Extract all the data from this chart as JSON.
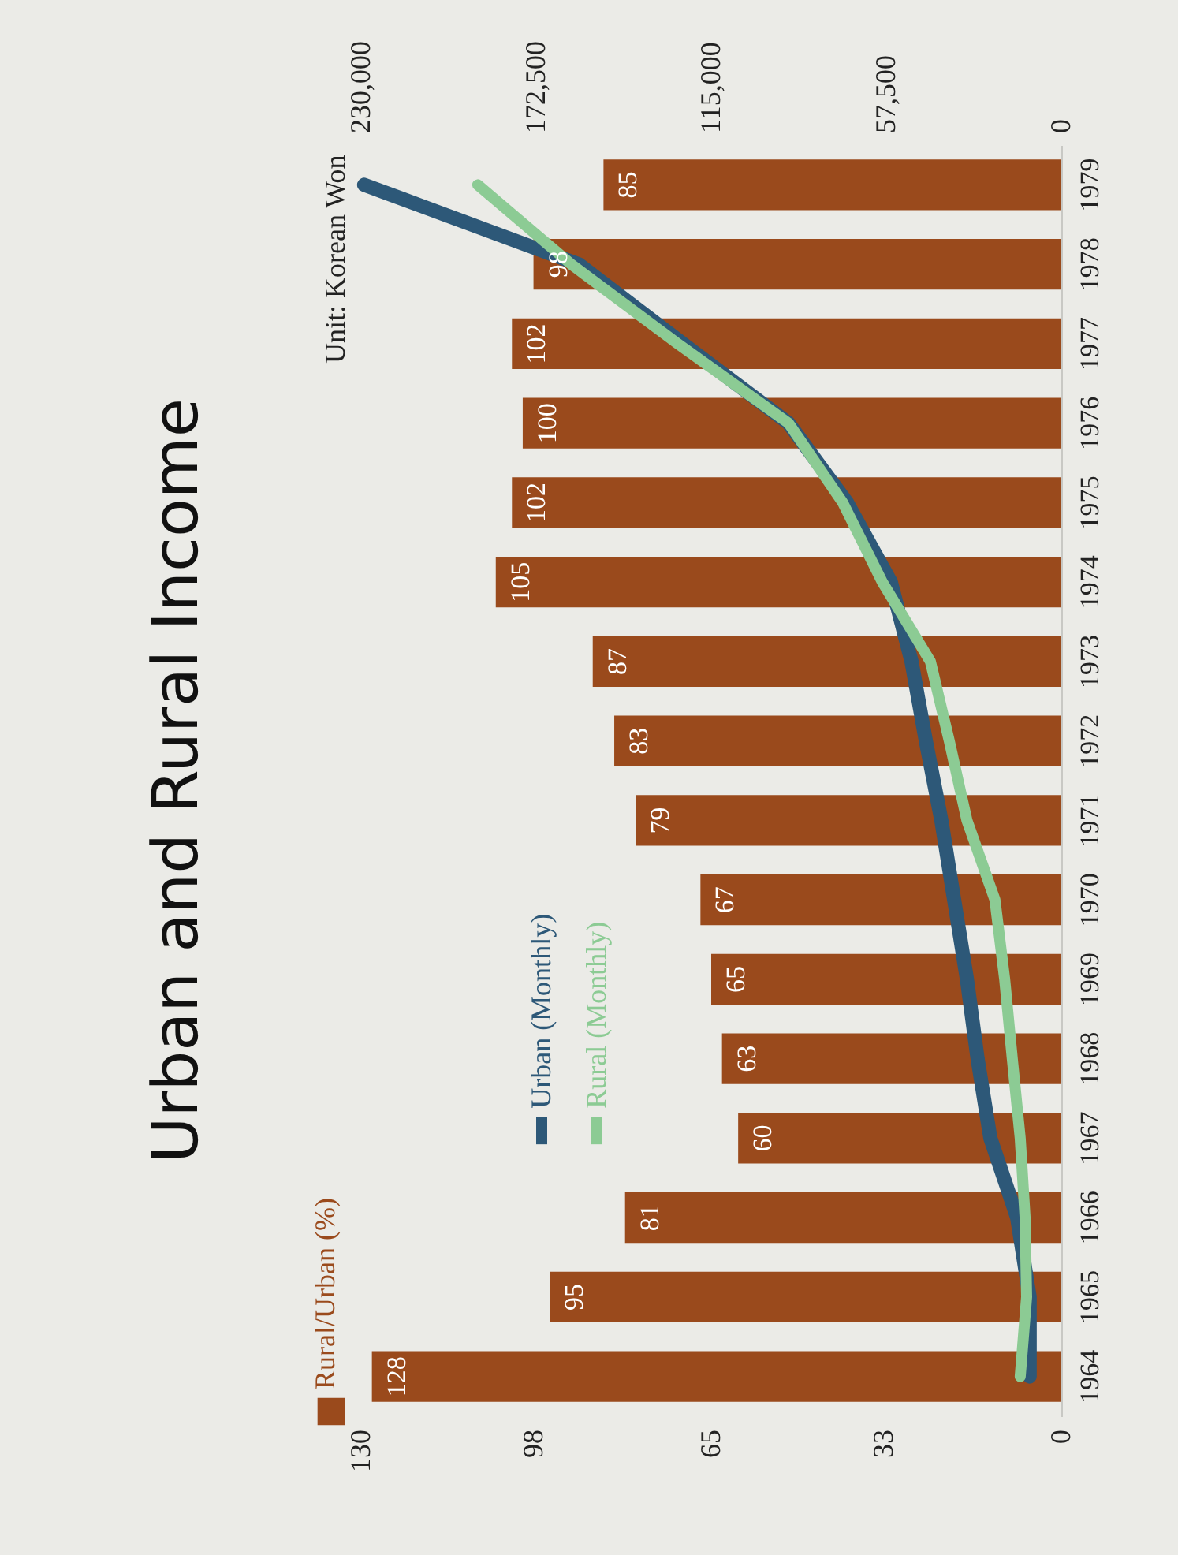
{
  "chart_data": {
    "type": "bar",
    "title": "Urban and Rural Income",
    "x2label": "Unit: Korean Won",
    "orientation": "horizontal",
    "categories": [
      "1979",
      "1978",
      "1977",
      "1976",
      "1975",
      "1974",
      "1973",
      "1972",
      "1971",
      "1970",
      "1969",
      "1968",
      "1967",
      "1966",
      "1965",
      "1964"
    ],
    "series": [
      {
        "name": "Rural/Urban (%)",
        "type": "bar",
        "color": "#9a4a1c",
        "values": [
          85,
          98,
          102,
          100,
          102,
          105,
          87,
          83,
          79,
          67,
          65,
          63,
          60,
          81,
          95,
          128
        ],
        "value_labels": [
          "85",
          "98",
          "102",
          "100",
          "102",
          "105",
          "87",
          "83",
          "79",
          "67",
          "65",
          "63",
          "60",
          "81",
          "95",
          "128"
        ]
      },
      {
        "name": "Urban (Monthly)",
        "type": "line",
        "axis": "x2",
        "color": "#2d5878",
        "values": [
          229000,
          158500,
          124300,
          89600,
          70400,
          56000,
          49200,
          44500,
          39400,
          35200,
          31000,
          27500,
          23300,
          14500,
          10400,
          10400
        ]
      },
      {
        "name": "Rural (Monthly)",
        "type": "line",
        "axis": "x2",
        "color": "#8ccb94",
        "values": [
          191700,
          161000,
          126000,
          89600,
          71800,
          58800,
          43000,
          36800,
          31000,
          21800,
          18600,
          16100,
          13500,
          11900,
          11400,
          13500
        ]
      }
    ],
    "xlim": [
      130,
      0
    ],
    "xticks": [
      0,
      33,
      65,
      98,
      130
    ],
    "x2lim": [
      230000,
      0
    ],
    "x2ticks": [
      0,
      {
        "value": 57500,
        "label": "57,500"
      },
      {
        "value": 115000,
        "label": "115,000"
      },
      {
        "value": 172500,
        "label": "172,500"
      },
      {
        "value": 230000,
        "label": "230,000"
      }
    ],
    "legend": "bottom left",
    "grid": false
  }
}
